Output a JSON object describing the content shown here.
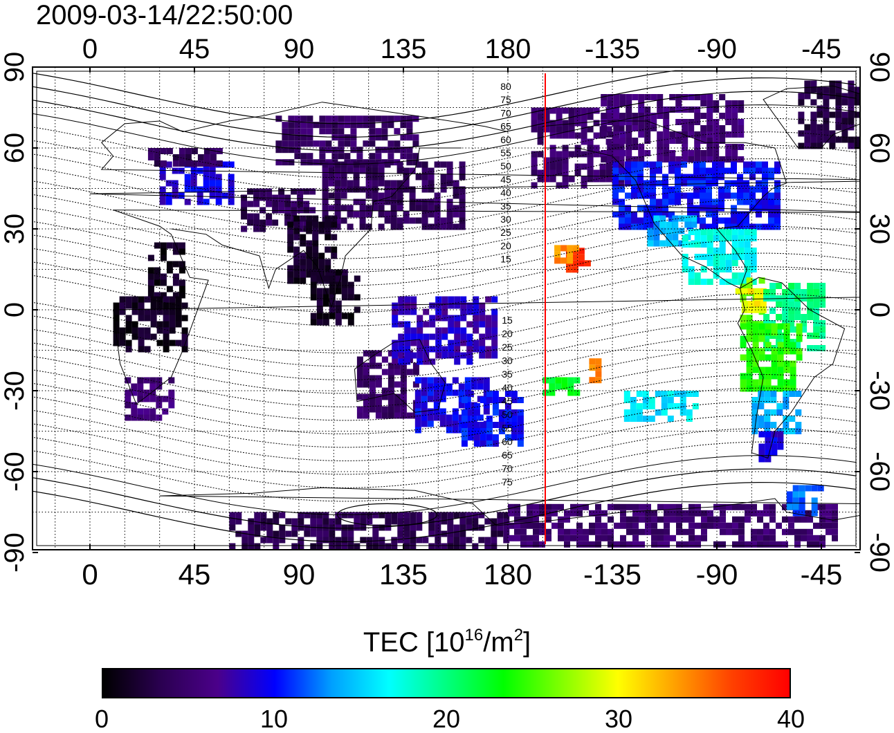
{
  "timestamp": "2009-03-14/22:50:00",
  "map": {
    "type": "TEC map",
    "lon_ticks_top": [
      "0",
      "45",
      "90",
      "135",
      "180",
      "-135",
      "-90",
      "-45"
    ],
    "lon_ticks_bottom": [
      "0",
      "45",
      "90",
      "135",
      "180",
      "-135",
      "-90",
      "-45"
    ],
    "lat_ticks_left": [
      "90",
      "60",
      "30",
      "0",
      "-30",
      "-60",
      "-90"
    ],
    "lat_ticks_right": [
      "90",
      "60",
      "30",
      "0",
      "-30",
      "-60",
      "-90"
    ],
    "grid": "dotted, 15 degree",
    "terminator_longitude": 200,
    "terminator_color": "#ff0000",
    "contour_labels_north": [
      "80",
      "75",
      "70",
      "65",
      "60",
      "55",
      "50",
      "45",
      "40",
      "35",
      "30",
      "25",
      "20",
      "15"
    ],
    "contour_labels_south": [
      "15",
      "20",
      "25",
      "30",
      "35",
      "40",
      "45",
      "50",
      "55",
      "60",
      "65",
      "70",
      "75"
    ]
  },
  "colorbar": {
    "title_prefix": "TEC  [10",
    "title_exp1": "16",
    "title_mid": "/m",
    "title_exp2": "2",
    "title_suffix": "]",
    "min": 0,
    "max": 40,
    "ticks": [
      "0",
      "10",
      "20",
      "30",
      "40"
    ],
    "colors": [
      "#000000",
      "#2a0050",
      "#4b008a",
      "#0000ff",
      "#00a0ff",
      "#00ffff",
      "#00ff80",
      "#00ff00",
      "#80ff00",
      "#ffff00",
      "#ffa000",
      "#ff4000",
      "#ff0000"
    ]
  }
}
